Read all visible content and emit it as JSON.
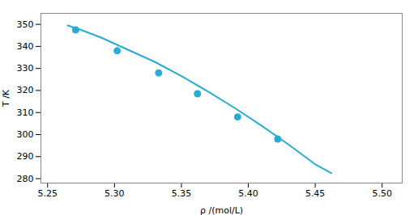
{
  "chart_data": {
    "type": "line",
    "xlabel": "ρ /(mol/L)",
    "ylabel": "T /K",
    "xlim": [
      5.245,
      5.515
    ],
    "ylim": [
      278,
      355
    ],
    "xticks": [
      5.25,
      {
        "value": 5.3,
        "label": "5.30"
      },
      5.35,
      {
        "value": 5.4,
        "label": "5.40"
      },
      5.45,
      {
        "value": 5.5,
        "label": "5.50"
      }
    ],
    "yticks": [
      280,
      290,
      300,
      310,
      320,
      330,
      340,
      350
    ],
    "grid": false,
    "series": [
      {
        "type": "line",
        "color": "#29ABD4",
        "x": [
          5.265,
          5.275,
          5.29,
          5.31,
          5.33,
          5.35,
          5.37,
          5.39,
          5.41,
          5.43,
          5.45,
          5.462
        ],
        "values": [
          349.5,
          347.5,
          344.0,
          338.5,
          333.0,
          326.5,
          319.5,
          312.0,
          304.0,
          295.5,
          286.5,
          282.5
        ]
      },
      {
        "type": "scatter",
        "color": "#29ABD4",
        "x": [
          5.271,
          5.302,
          5.333,
          5.362,
          5.392,
          5.422
        ],
        "values": [
          347.5,
          338.0,
          328.0,
          318.5,
          308.0,
          298.0
        ]
      }
    ]
  }
}
